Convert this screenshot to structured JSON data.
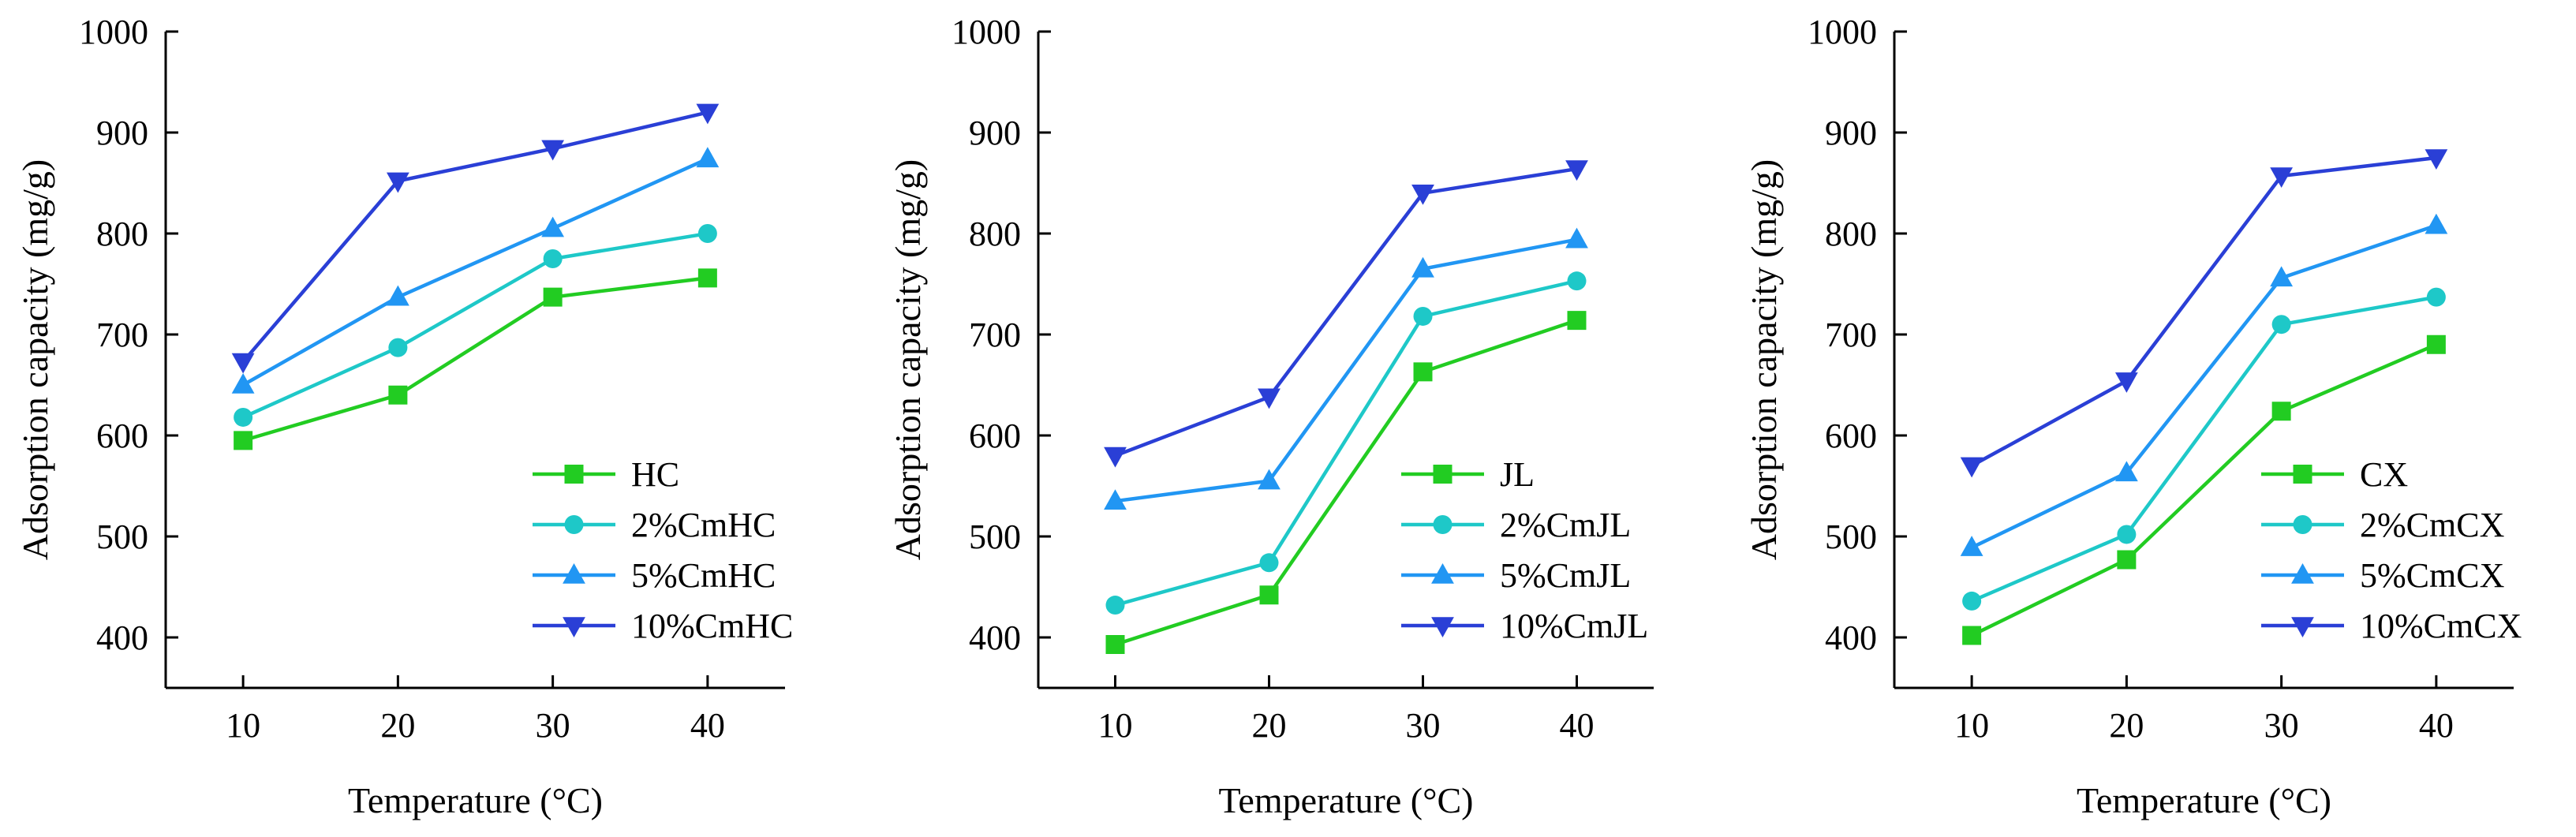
{
  "chart_data": [
    {
      "type": "line",
      "xlabel": "Temperature (°C)",
      "ylabel": "Adsorption capacity (mg/g)",
      "x": [
        10,
        20,
        30,
        40
      ],
      "xticks": [
        10,
        20,
        30,
        40
      ],
      "xlim": [
        5,
        45
      ],
      "ylim": [
        350,
        1000
      ],
      "yticks": [
        400,
        500,
        600,
        700,
        800,
        900,
        1000
      ],
      "legend_position": "lower-right",
      "series": [
        {
          "name": "HC",
          "color": "#22cc22",
          "marker": "square",
          "values": [
            595,
            640,
            737,
            756
          ]
        },
        {
          "name": "2%CmHC",
          "color": "#1ec8c8",
          "marker": "circle",
          "values": [
            618,
            687,
            775,
            800
          ]
        },
        {
          "name": "5%CmHC",
          "color": "#2196f3",
          "marker": "triangle-up",
          "values": [
            650,
            737,
            805,
            874
          ]
        },
        {
          "name": "10%CmHC",
          "color": "#2a3fd6",
          "marker": "triangle-down",
          "values": [
            673,
            852,
            884,
            920
          ]
        }
      ]
    },
    {
      "type": "line",
      "xlabel": "Temperature (°C)",
      "ylabel": "Adsorption capacity (mg/g)",
      "x": [
        10,
        20,
        30,
        40
      ],
      "xticks": [
        10,
        20,
        30,
        40
      ],
      "xlim": [
        5,
        45
      ],
      "ylim": [
        350,
        1000
      ],
      "yticks": [
        400,
        500,
        600,
        700,
        800,
        900,
        1000
      ],
      "legend_position": "lower-right",
      "series": [
        {
          "name": "JL",
          "color": "#22cc22",
          "marker": "square",
          "values": [
            393,
            442,
            663,
            714
          ]
        },
        {
          "name": "2%CmJL",
          "color": "#1ec8c8",
          "marker": "circle",
          "values": [
            432,
            474,
            718,
            753
          ]
        },
        {
          "name": "5%CmJL",
          "color": "#2196f3",
          "marker": "triangle-up",
          "values": [
            535,
            555,
            765,
            794
          ]
        },
        {
          "name": "10%CmJL",
          "color": "#2a3fd6",
          "marker": "triangle-down",
          "values": [
            580,
            638,
            840,
            864
          ]
        }
      ]
    },
    {
      "type": "line",
      "xlabel": "Temperature (°C)",
      "ylabel": "Adsorption capacity (mg/g)",
      "x": [
        10,
        20,
        30,
        40
      ],
      "xticks": [
        10,
        20,
        30,
        40
      ],
      "xlim": [
        5,
        45
      ],
      "ylim": [
        350,
        1000
      ],
      "yticks": [
        400,
        500,
        600,
        700,
        800,
        900,
        1000
      ],
      "legend_position": "lower-right",
      "series": [
        {
          "name": "CX",
          "color": "#22cc22",
          "marker": "square",
          "values": [
            402,
            477,
            624,
            690
          ]
        },
        {
          "name": "2%CmCX",
          "color": "#1ec8c8",
          "marker": "circle",
          "values": [
            436,
            502,
            710,
            737
          ]
        },
        {
          "name": "5%CmCX",
          "color": "#2196f3",
          "marker": "triangle-up",
          "values": [
            489,
            563,
            756,
            808
          ]
        },
        {
          "name": "10%CmCX",
          "color": "#2a3fd6",
          "marker": "triangle-down",
          "values": [
            570,
            654,
            857,
            875
          ]
        }
      ]
    }
  ]
}
